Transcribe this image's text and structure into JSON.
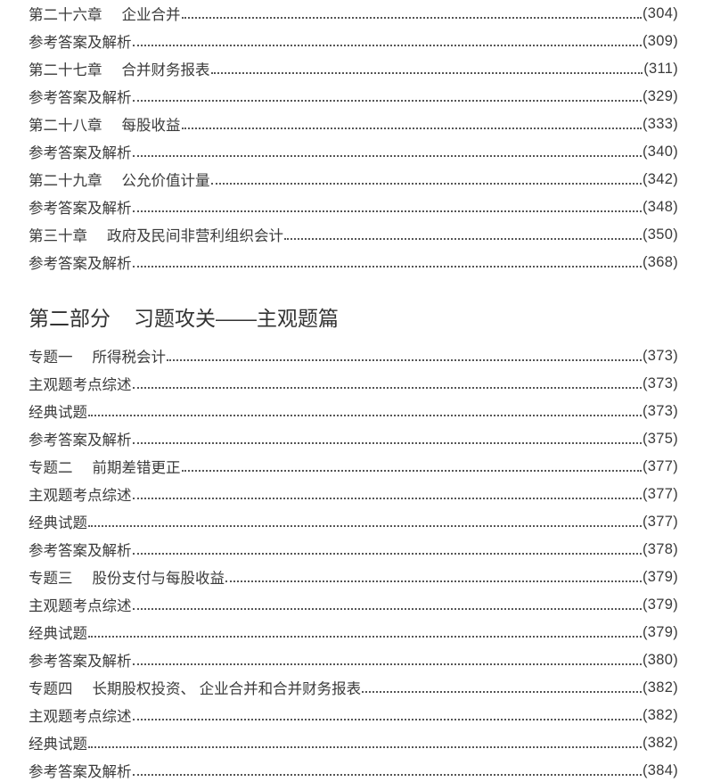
{
  "section1": [
    {
      "num": "第二十六章",
      "title": "企业合并",
      "page": "(304)"
    },
    {
      "num": "",
      "title": "参考答案及解析",
      "page": "(309)"
    },
    {
      "num": "第二十七章",
      "title": "合并财务报表",
      "page": "(311)"
    },
    {
      "num": "",
      "title": "参考答案及解析",
      "page": "(329)"
    },
    {
      "num": "第二十八章",
      "title": "每股收益",
      "page": "(333)"
    },
    {
      "num": "",
      "title": "参考答案及解析",
      "page": "(340)"
    },
    {
      "num": "第二十九章",
      "title": "公允价值计量",
      "page": "(342)"
    },
    {
      "num": "",
      "title": "参考答案及解析",
      "page": "(348)"
    },
    {
      "num": "第三十章",
      "title": "政府及民间非营利组织会计",
      "page": "(350)"
    },
    {
      "num": "",
      "title": "参考答案及解析",
      "page": "(368)"
    }
  ],
  "part2": {
    "num": "第二部分",
    "title": "习题攻关——主观题篇"
  },
  "section2": [
    {
      "num": "专题一",
      "title": "所得税会计",
      "page": "(373)"
    },
    {
      "num": "",
      "title": "主观题考点综述",
      "page": "(373)"
    },
    {
      "num": "",
      "title": "经典试题",
      "page": "(373)"
    },
    {
      "num": "",
      "title": "参考答案及解析",
      "page": "(375)"
    },
    {
      "num": "专题二",
      "title": "前期差错更正",
      "page": "(377)"
    },
    {
      "num": "",
      "title": "主观题考点综述",
      "page": "(377)"
    },
    {
      "num": "",
      "title": "经典试题",
      "page": "(377)"
    },
    {
      "num": "",
      "title": "参考答案及解析",
      "page": "(378)"
    },
    {
      "num": "专题三",
      "title": "股份支付与每股收益",
      "page": "(379)"
    },
    {
      "num": "",
      "title": "主观题考点综述",
      "page": "(379)"
    },
    {
      "num": "",
      "title": "经典试题",
      "page": "(379)"
    },
    {
      "num": "",
      "title": "参考答案及解析",
      "page": "(380)"
    },
    {
      "num": "专题四",
      "title": "长期股权投资、 企业合并和合并财务报表",
      "page": "(382)"
    },
    {
      "num": "",
      "title": "主观题考点综述",
      "page": "(382)"
    },
    {
      "num": "",
      "title": "经典试题",
      "page": "(382)"
    },
    {
      "num": "",
      "title": "参考答案及解析",
      "page": "(384)"
    }
  ]
}
